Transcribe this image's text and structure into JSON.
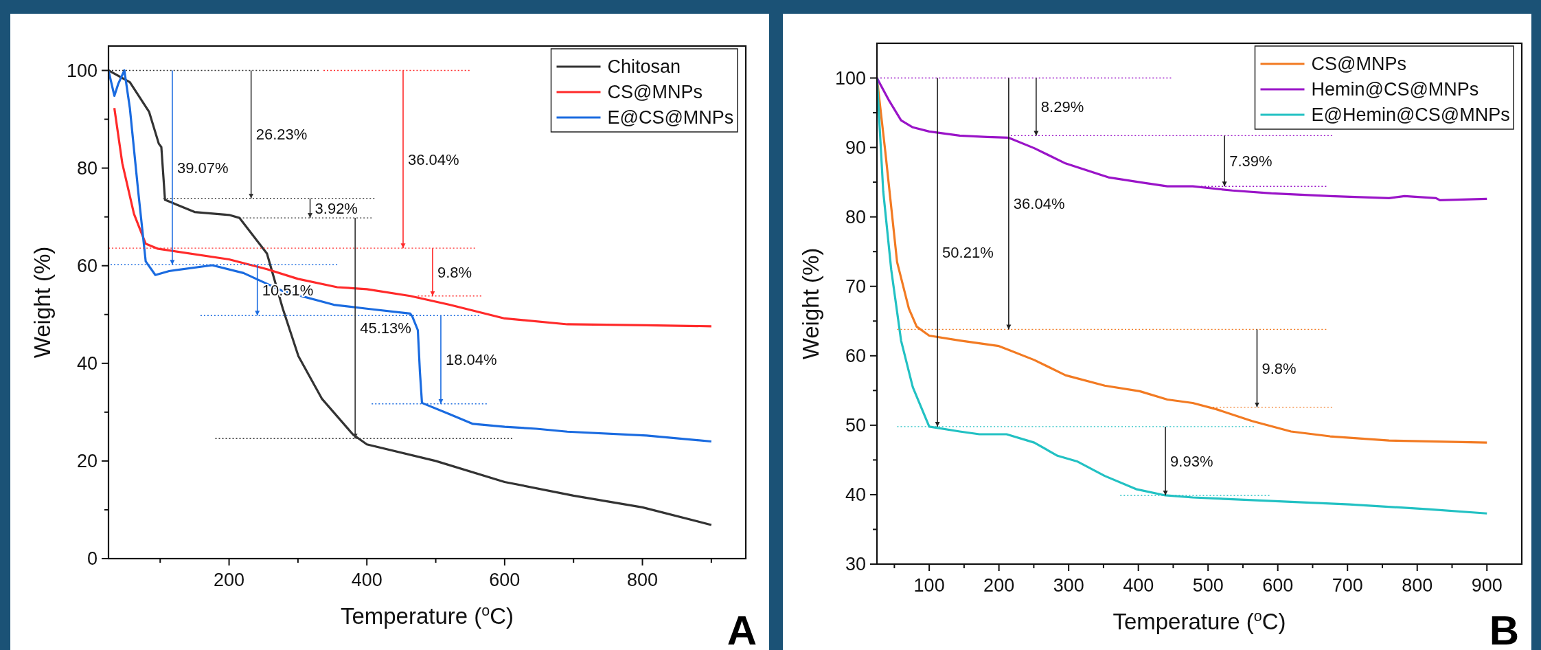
{
  "chart_data": [
    {
      "type": "line",
      "xlabel": "Temperature ($^{o}$C)",
      "ylabel": "Weight (%)",
      "xlim": [
        25,
        950
      ],
      "ylim": [
        0,
        105
      ],
      "xticks": [
        {
          "value": 100,
          "label": null
        },
        200,
        {
          "value": 300,
          "label": null
        },
        400,
        {
          "value": 500,
          "label": null
        },
        600,
        {
          "value": 700,
          "label": null
        },
        800,
        {
          "value": 900,
          "label": null
        }
      ],
      "yticks": [
        0,
        {
          "value": 10,
          "label": null
        },
        20,
        {
          "value": 30,
          "label": null
        },
        40,
        {
          "value": 50,
          "label": null
        },
        60,
        {
          "value": 70,
          "label": null
        },
        80,
        {
          "value": 90,
          "label": null
        },
        100
      ],
      "legend": "top right",
      "line_style": "solid",
      "series": [
        {
          "name": "Chitosan",
          "color": "#333333",
          "x": [
            25,
            56,
            84,
            98,
            101.7,
            107,
            150,
            200,
            215,
            255,
            278,
            300.6,
            335,
            380,
            400,
            500,
            600,
            700,
            800,
            900
          ],
          "values": [
            100,
            97.6,
            91.5,
            85,
            84.3,
            73.5,
            71,
            70.4,
            69.8,
            62.5,
            51.2,
            41.5,
            32.7,
            25.4,
            23.4,
            20,
            15.7,
            12.9,
            10.5,
            6.9
          ]
        },
        {
          "name": "CS@MNPs",
          "color": "#ff2a2a",
          "x": [
            33.5,
            45,
            62,
            79,
            96,
            200,
            255,
            300,
            357,
            400,
            463,
            520,
            600,
            691,
            806,
            900
          ],
          "values": [
            92.3,
            81,
            70.6,
            64.5,
            63.5,
            61.3,
            59.3,
            57.3,
            55.6,
            55.2,
            53.8,
            52,
            49.2,
            48,
            47.8,
            47.6
          ]
        },
        {
          "name": "E@CS@MNPs",
          "color": "#1a6be0",
          "x": [
            25,
            33.5,
            39,
            48,
            56,
            68,
            79,
            93,
            113,
            175.6,
            221,
            278,
            352,
            400,
            463,
            466,
            474,
            477,
            480,
            520,
            554,
            600,
            646,
            691,
            806,
            900
          ],
          "values": [
            100,
            94.8,
            97.2,
            100,
            92.3,
            75.4,
            60.9,
            58.1,
            58.9,
            60.1,
            58.5,
            54.8,
            52,
            51.2,
            50.2,
            49.6,
            46.8,
            38.3,
            31.9,
            29.6,
            27.6,
            27,
            26.6,
            26,
            25.2,
            24
          ]
        },
        {
          "type": "line",
          "line_style": "dotted",
          "color": "#333333",
          "x": [
            25,
            330
          ],
          "values": [
            100,
            100
          ]
        },
        {
          "type": "line",
          "line_style": "dotted",
          "color": "#ff2a2a",
          "x": [
            337,
            549
          ],
          "values": [
            100,
            100
          ]
        },
        {
          "type": "line",
          "line_style": "dotted",
          "color": "#333333",
          "x": [
            104.5,
            411
          ],
          "values": [
            73.8,
            73.8
          ]
        },
        {
          "type": "line",
          "line_style": "dotted",
          "color": "#333333",
          "x": [
            215,
            407
          ],
          "values": [
            69.8,
            69.8
          ]
        },
        {
          "type": "line",
          "line_style": "dotted",
          "color": "#333333",
          "x": [
            180,
            611
          ],
          "values": [
            24.6,
            24.6
          ]
        },
        {
          "type": "line",
          "line_style": "dotted",
          "color": "#ff2a2a",
          "x": [
            25,
            557
          ],
          "values": [
            63.6,
            63.6
          ]
        },
        {
          "type": "line",
          "line_style": "dotted",
          "color": "#ff2a2a",
          "x": [
            474,
            566
          ],
          "values": [
            53.8,
            53.8
          ]
        },
        {
          "type": "line",
          "line_style": "dotted",
          "color": "#1a6be0",
          "x": [
            28,
            357
          ],
          "values": [
            60.2,
            60.2
          ]
        },
        {
          "type": "line",
          "line_style": "dotted",
          "color": "#1a6be0",
          "x": [
            158.5,
            563
          ],
          "values": [
            49.8,
            49.8
          ]
        },
        {
          "type": "line",
          "line_style": "dotted",
          "color": "#1a6be0",
          "x": [
            407,
            574
          ],
          "values": [
            31.7,
            31.7
          ]
        },
        {
          "type": "line",
          "color": "#1a6be0",
          "x": [
            117.6,
            117.6
          ],
          "values": [
            100,
            60.2
          ]
        },
        {
          "type": "line",
          "color": "#333333",
          "x": [
            232,
            232
          ],
          "values": [
            100,
            73.8
          ]
        },
        {
          "type": "line",
          "color": "#333333",
          "x": [
            317.6,
            317.6
          ],
          "values": [
            73.8,
            69.8
          ]
        },
        {
          "type": "line",
          "color": "#333333",
          "x": [
            383,
            383
          ],
          "values": [
            69.8,
            24.6
          ]
        },
        {
          "type": "line",
          "color": "#ff2a2a",
          "x": [
            452.6,
            452.6
          ],
          "values": [
            100,
            63.6
          ]
        },
        {
          "type": "line",
          "color": "#ff2a2a",
          "x": [
            495.4,
            495.4
          ],
          "values": [
            63.6,
            53.8
          ]
        },
        {
          "type": "line",
          "color": "#1a6be0",
          "x": [
            241,
            241
          ],
          "values": [
            60.2,
            49.8
          ]
        },
        {
          "type": "line",
          "color": "#1a6be0",
          "x": [
            507.4,
            507.4
          ],
          "values": [
            49.8,
            31.7
          ]
        }
      ],
      "annotations": [
        {
          "text": "39.07%",
          "x": 117.6,
          "y": 80.1
        },
        {
          "text": "26.23%",
          "x": 232,
          "y": 86.9
        },
        {
          "text": "3.92%",
          "x": 317.6,
          "y": 71.8
        },
        {
          "text": "45.13%",
          "x": 383,
          "y": 47.2
        },
        {
          "text": "36.04%",
          "x": 452.6,
          "y": 81.8
        },
        {
          "text": "9.8%",
          "x": 495.4,
          "y": 58.7
        },
        {
          "text": "10.51%",
          "x": 241,
          "y": 55
        },
        {
          "text": "18.04%",
          "x": 507.4,
          "y": 40.75
        },
        "A"
      ]
    },
    {
      "type": "line",
      "xlabel": "Temperature ($^{o}$C)",
      "ylabel": "Weight (%)",
      "xlim": [
        25,
        950
      ],
      "ylim": [
        30,
        105
      ],
      "xticks": [
        {
          "value": 50,
          "label": null
        },
        100,
        {
          "value": 150,
          "label": null
        },
        200,
        {
          "value": 250,
          "label": null
        },
        300,
        {
          "value": 350,
          "label": null
        },
        400,
        {
          "value": 450,
          "label": null
        },
        500,
        {
          "value": 550,
          "label": null
        },
        600,
        {
          "value": 650,
          "label": null
        },
        700,
        {
          "value": 750,
          "label": null
        },
        800,
        {
          "value": 850,
          "label": null
        },
        900
      ],
      "yticks": [
        30,
        {
          "value": 35,
          "label": null
        },
        40,
        {
          "value": 45,
          "label": null
        },
        50,
        {
          "value": 55,
          "label": null
        },
        60,
        {
          "value": 65,
          "label": null
        },
        70,
        {
          "value": 75,
          "label": null
        },
        80,
        {
          "value": 85,
          "label": null
        },
        90,
        {
          "value": 95,
          "label": null
        },
        100
      ],
      "legend": "top right",
      "line_style": "solid",
      "series": [
        {
          "name": "CS@MNPs",
          "color": "#f27a22",
          "x": [
            25,
            37,
            53.9,
            70.8,
            82,
            100,
            143.8,
            200,
            250.6,
            295.5,
            351.7,
            402,
            441.6,
            478,
            512,
            563,
            619,
            675,
            759.6,
            900
          ],
          "values": [
            100,
            89.4,
            73.5,
            66.8,
            64.2,
            62.9,
            62.2,
            61.4,
            59.4,
            57.2,
            55.7,
            54.9,
            53.7,
            53.2,
            52.3,
            50.6,
            49.1,
            48.4,
            47.8,
            47.5
          ]
        },
        {
          "name": "Hemin@CS@MNPs",
          "color": "#9a14c8",
          "x": [
            25,
            42.7,
            59.6,
            76.4,
            100,
            143.8,
            183,
            214,
            250.6,
            295.5,
            357,
            408,
            441.6,
            478,
            534.8,
            591,
            675,
            759.6,
            782,
            827,
            832.6,
            900
          ],
          "values": [
            100,
            96.7,
            93.9,
            92.9,
            92.3,
            91.7,
            91.5,
            91.4,
            89.9,
            87.7,
            85.7,
            84.9,
            84.4,
            84.4,
            83.8,
            83.4,
            83,
            82.7,
            83,
            82.7,
            82.4,
            82.6
          ]
        },
        {
          "name": "E@Hemin@CS@MNPs",
          "color": "#22c1c3",
          "x": [
            25,
            34,
            45.5,
            59.6,
            76.4,
            100,
            143.8,
            172,
            211,
            250.6,
            284,
            312,
            351.7,
            396.6,
            438.8,
            478,
            591,
            703,
            815.7,
            900
          ],
          "values": [
            100,
            83.7,
            72.4,
            62.2,
            55.5,
            49.8,
            49.1,
            48.7,
            48.7,
            47.5,
            45.6,
            44.8,
            42.7,
            40.8,
            39.9,
            39.6,
            39.1,
            38.6,
            37.9,
            37.3
          ]
        },
        {
          "type": "line",
          "line_style": "dotted",
          "color": "#9a14c8",
          "x": [
            25,
            447
          ],
          "values": [
            100,
            100
          ]
        },
        {
          "type": "line",
          "line_style": "dotted",
          "color": "#9a14c8",
          "x": [
            217,
            678
          ],
          "values": [
            91.7,
            91.7
          ]
        },
        {
          "type": "line",
          "line_style": "dotted",
          "color": "#9a14c8",
          "x": [
            490,
            669.6
          ],
          "values": [
            84.4,
            84.4
          ]
        },
        {
          "type": "line",
          "line_style": "dotted",
          "color": "#f27a22",
          "x": [
            54,
            669.6
          ],
          "values": [
            63.8,
            63.8
          ]
        },
        {
          "type": "line",
          "line_style": "dotted",
          "color": "#f27a22",
          "x": [
            506.7,
            678
          ],
          "values": [
            52.6,
            52.6
          ]
        },
        {
          "type": "line",
          "line_style": "dotted",
          "color": "#22c1c3",
          "x": [
            54,
            565.7
          ],
          "values": [
            49.8,
            49.8
          ]
        },
        {
          "type": "line",
          "line_style": "dotted",
          "color": "#22c1c3",
          "x": [
            374,
            588
          ],
          "values": [
            39.9,
            39.9
          ]
        },
        {
          "type": "line",
          "color": "#222222",
          "x": [
            253.4,
            253.4
          ],
          "values": [
            100,
            91.7
          ]
        },
        {
          "type": "line",
          "color": "#222222",
          "x": [
            523.6,
            523.6
          ],
          "values": [
            91.7,
            84.4
          ]
        },
        {
          "type": "line",
          "color": "#222222",
          "x": [
            111.8,
            111.8
          ],
          "values": [
            100,
            49.8
          ]
        },
        {
          "type": "line",
          "color": "#222222",
          "x": [
            214,
            214
          ],
          "values": [
            100,
            63.8
          ]
        },
        {
          "type": "line",
          "color": "#222222",
          "x": [
            570.2,
            570.2
          ],
          "values": [
            63.8,
            52.6
          ]
        },
        {
          "type": "line",
          "color": "#222222",
          "x": [
            438.8,
            438.8
          ],
          "values": [
            49.8,
            39.9
          ]
        }
      ],
      "annotations": [
        {
          "text": "8.29%",
          "x": 253.4,
          "y": 95.85
        },
        {
          "text": "7.39%",
          "x": 523.6,
          "y": 88.05
        },
        {
          "text": "50.21%",
          "x": 111.8,
          "y": 74.9
        },
        {
          "text": "36.04%",
          "x": 214,
          "y": 81.9
        },
        {
          "text": "9.8%",
          "x": 570.2,
          "y": 58.2
        },
        {
          "text": "9.93%",
          "x": 438.8,
          "y": 44.85
        },
        "B"
      ]
    }
  ]
}
